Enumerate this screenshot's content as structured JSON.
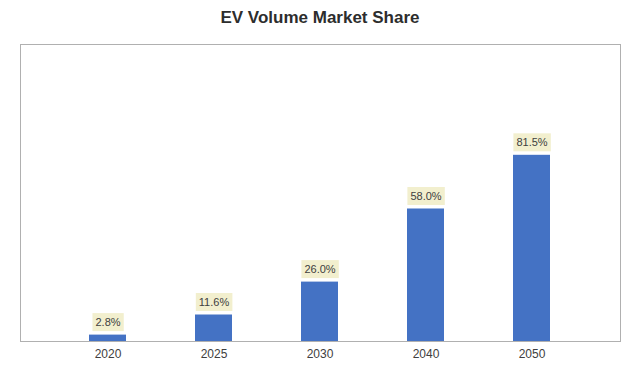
{
  "chart_data": {
    "type": "bar",
    "title": "EV Volume Market Share",
    "categories": [
      "2020",
      "2025",
      "2030",
      "2040",
      "2050"
    ],
    "values": [
      2.8,
      11.6,
      26.0,
      58.0,
      81.5
    ],
    "value_labels": [
      "2.8%",
      "11.6%",
      "26.0%",
      "58.0%",
      "81.5%"
    ],
    "color": "#4472C4",
    "ylim": [
      0,
      130
    ],
    "grid": false,
    "data_labels": true,
    "tick_labels": "x"
  }
}
